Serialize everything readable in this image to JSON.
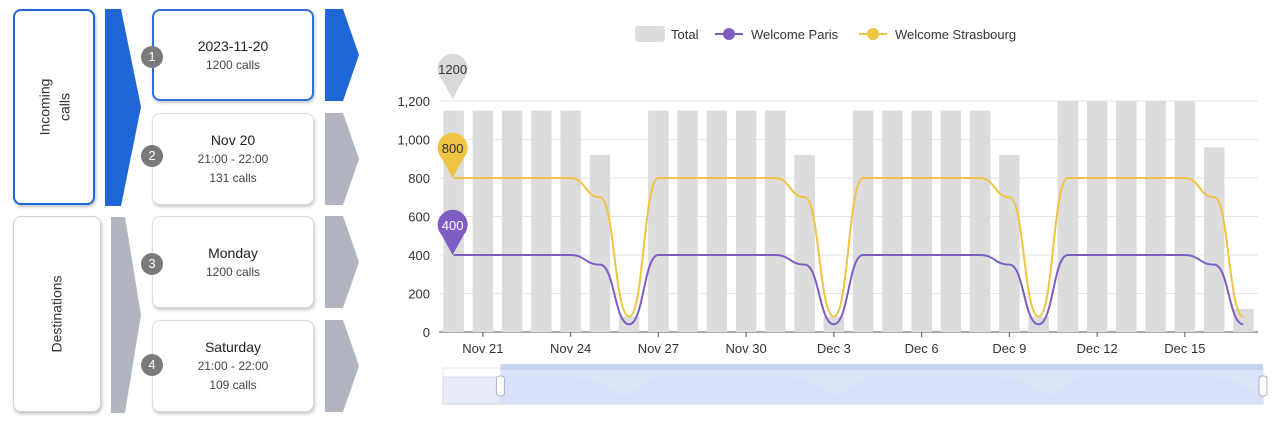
{
  "sidebar": {
    "incoming_label": "Incoming\ncalls",
    "destinations_label": "Destinations",
    "nodes": [
      {
        "badge": "1",
        "title": "2023-11-20",
        "time": "",
        "calls": "1200 calls",
        "active": true
      },
      {
        "badge": "2",
        "title": "Nov 20",
        "time": "21:00 - 22:00",
        "calls": "131 calls",
        "active": false
      },
      {
        "badge": "3",
        "title": "Monday",
        "time": "",
        "calls": "1200 calls",
        "active": false
      },
      {
        "badge": "4",
        "title": "Saturday",
        "time": "21:00 - 22:00",
        "calls": "109 calls",
        "active": false
      }
    ]
  },
  "colors": {
    "accent_blue": "#1f66d6",
    "inactive_gray": "#b1b5bf",
    "total_bar": "#dcdcdc",
    "paris": "#7e5cc4",
    "strasbourg": "#efc443",
    "zoom_fill": "#d3e0f8"
  },
  "chart_data": {
    "type": "bar",
    "legend": [
      "Total",
      "Welcome Paris",
      "Welcome Strasbourg"
    ],
    "legend_position": "top-center",
    "x_ticks": [
      "Nov 21",
      "Nov 24",
      "Nov 27",
      "Nov 30",
      "Dec 3",
      "Dec 6",
      "Dec 9",
      "Dec 12",
      "Dec 15"
    ],
    "ylim": [
      0,
      1200
    ],
    "y_ticks": [
      "0",
      "200",
      "400",
      "600",
      "800",
      "1,000",
      "1,200"
    ],
    "grid": true,
    "series": [
      {
        "name": "Total",
        "type": "bar",
        "values": [
          1150,
          1150,
          1150,
          1150,
          1150,
          920,
          80,
          1150,
          1150,
          1150,
          1150,
          1150,
          920,
          80,
          1150,
          1150,
          1150,
          1150,
          1150,
          920,
          80,
          1200,
          1200,
          1200,
          1200,
          1200,
          960,
          120
        ]
      },
      {
        "name": "Welcome Paris",
        "type": "line",
        "values": [
          400,
          400,
          400,
          400,
          400,
          350,
          40,
          400,
          400,
          400,
          400,
          400,
          350,
          40,
          400,
          400,
          400,
          400,
          400,
          350,
          40,
          400,
          400,
          400,
          400,
          400,
          350,
          40
        ]
      },
      {
        "name": "Welcome Strasbourg",
        "type": "line",
        "values": [
          800,
          800,
          800,
          800,
          800,
          700,
          80,
          800,
          800,
          800,
          800,
          800,
          700,
          80,
          800,
          800,
          800,
          800,
          800,
          700,
          80,
          800,
          800,
          800,
          800,
          800,
          700,
          80
        ]
      }
    ],
    "markers": [
      {
        "series": "Total",
        "label": "1200"
      },
      {
        "series": "Welcome Strasbourg",
        "label": "800"
      },
      {
        "series": "Welcome Paris",
        "label": "400"
      }
    ],
    "zoom_range": [
      0.07,
      1.0
    ]
  }
}
